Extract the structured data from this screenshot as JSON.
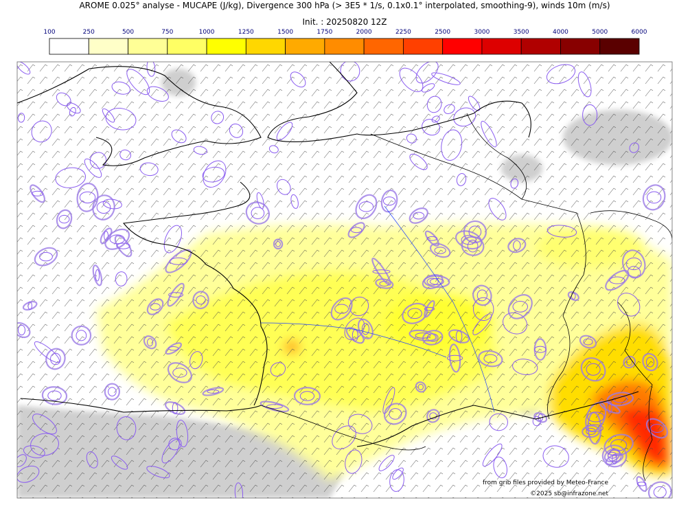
{
  "header": {
    "title": "AROME 0.025° analyse - MUCAPE (J/kg), Divergence 300 hPa (> 3E5 * 1/s, 0.1x0.1° interpolated, smoothing-9), winds 10m (m/s)",
    "init": "Init. : 20250820 12Z"
  },
  "colorbar": {
    "labels": [
      100,
      250,
      500,
      750,
      1000,
      1250,
      1500,
      1750,
      2000,
      2250,
      2500,
      3000,
      3500,
      4000,
      5000,
      6000
    ],
    "colors": [
      "#ffffff",
      "#ffffc8",
      "#ffff96",
      "#ffff64",
      "#ffff00",
      "#ffd700",
      "#ffaa00",
      "#ff8c00",
      "#ff6600",
      "#ff4000",
      "#ff0000",
      "#dd0000",
      "#b00000",
      "#880000",
      "#5a0000"
    ]
  },
  "credits": [
    "from grib files provided by Meteo-France",
    "©2025 sb@infrazone.net"
  ]
}
